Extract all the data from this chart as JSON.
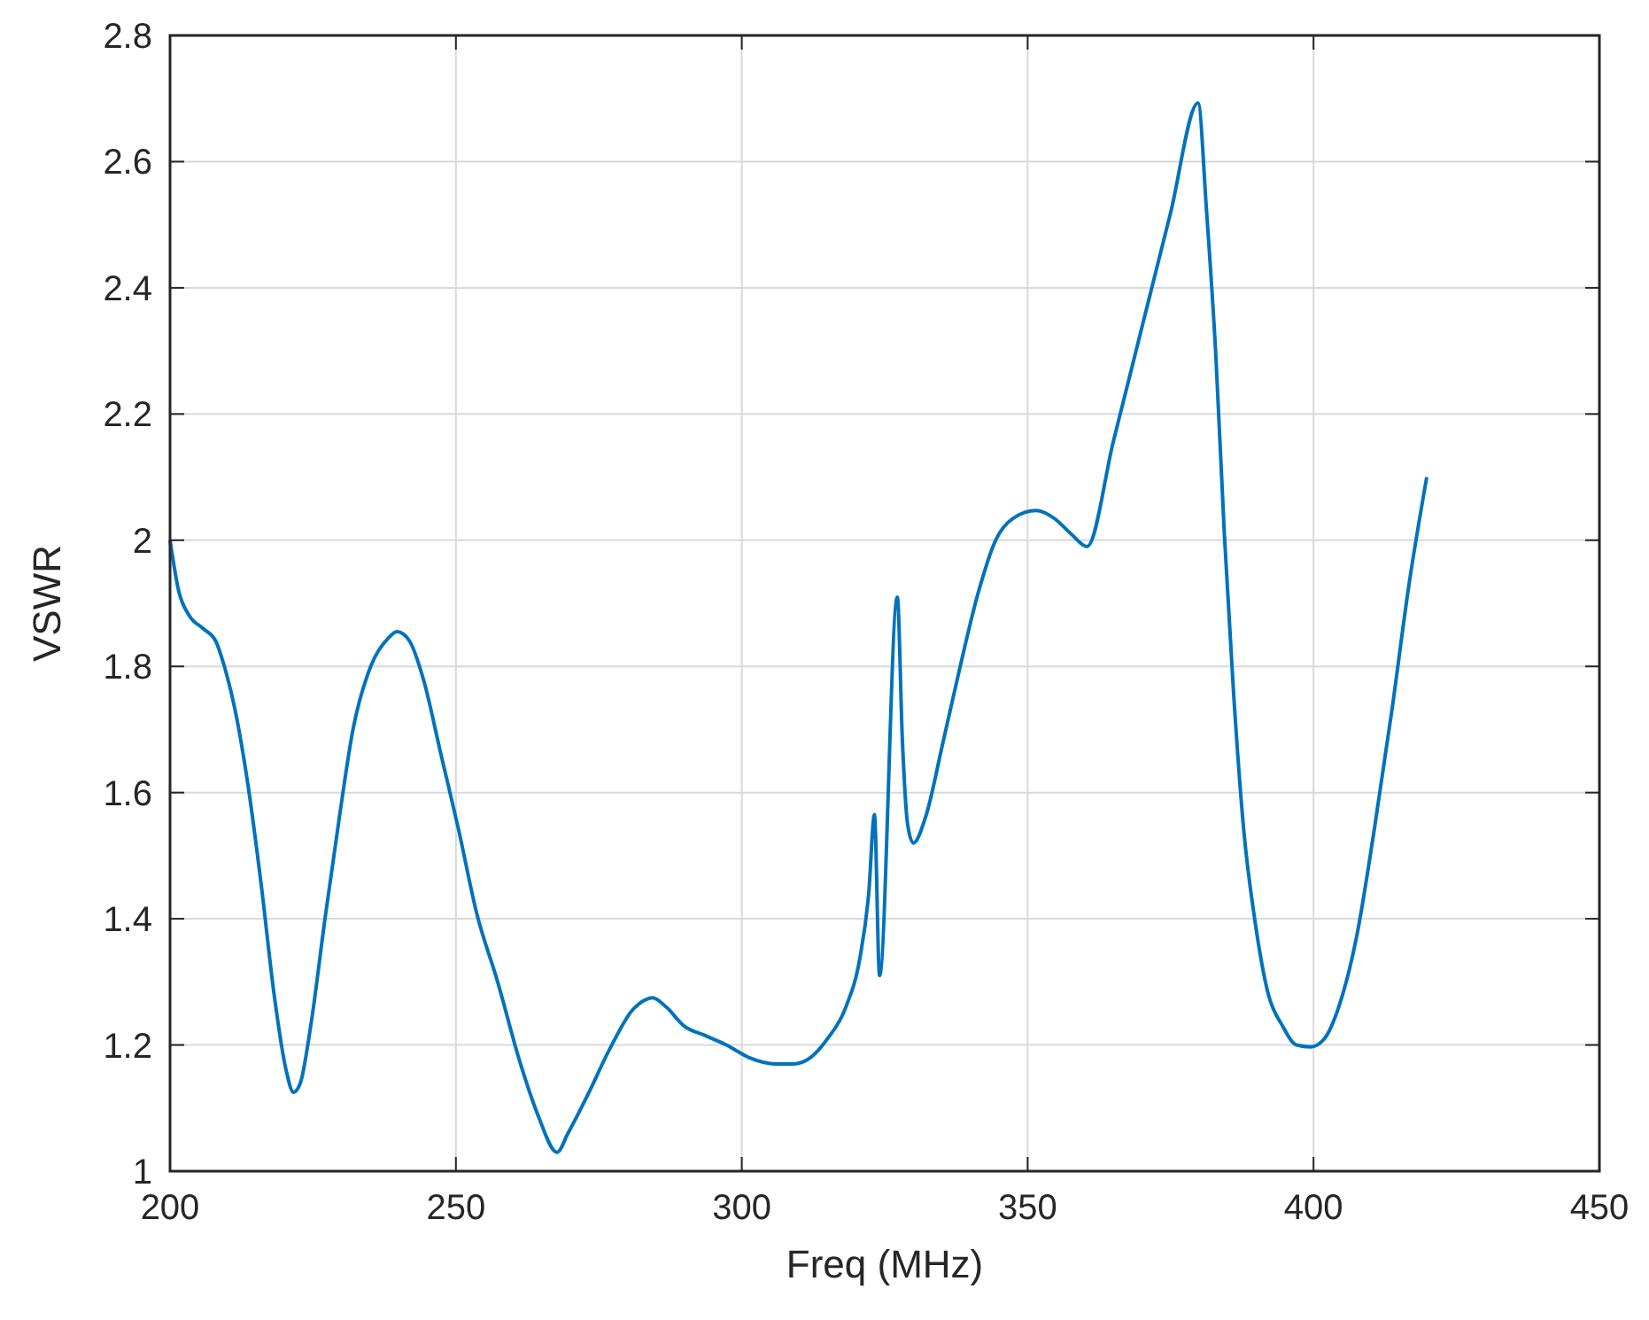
{
  "chart_data": {
    "type": "line",
    "xlabel": "Freq (MHz)",
    "ylabel": "VSWR",
    "xlim": [
      200,
      450
    ],
    "xticks": [
      200,
      250,
      300,
      350,
      400,
      450
    ],
    "ylim": [
      1,
      2.8
    ],
    "yticks": [
      1,
      1.2,
      1.4,
      1.6,
      1.8,
      2,
      2.2,
      2.4,
      2.6,
      2.8
    ],
    "grid": true,
    "series": [
      {
        "color": "#0072bd",
        "x": [
          200,
          201.5,
          203.4,
          205.8,
          208,
          209.5,
          211.4,
          213.5,
          216,
          218.2,
          220.3,
          221.6,
          222.8,
          224.6,
          227.1,
          229.6,
          232,
          235.1,
          238.2,
          239.7,
          241.9,
          244.3,
          247.4,
          250.5,
          253.6,
          257.3,
          261.3,
          264.3,
          267.7,
          269.6,
          273,
          276.7,
          279.7,
          280.4,
          282,
          284.4,
          286.8,
          289.9,
          293.6,
          297.3,
          301.3,
          305.9,
          309,
          312,
          315,
          318.2,
          320.7,
          322.2,
          323.2,
          324.1,
          327.2,
          328.1,
          329,
          330,
          332.1,
          335.2,
          338.2,
          341.3,
          344.4,
          347.5,
          351.5,
          354.6,
          357.6,
          360.4,
          365,
          370,
          375,
          379.8,
          381.3,
          382.9,
          384.4,
          386,
          387.8,
          389.7,
          392.1,
          394.6,
          397,
          399.5,
          401.9,
          404.4,
          407.5,
          410.6,
          413.7,
          416.7,
          419.8
        ],
        "values": [
          2.0,
          1.92,
          1.88,
          1.86,
          1.84,
          1.8,
          1.73,
          1.62,
          1.45,
          1.28,
          1.16,
          1.125,
          1.14,
          1.23,
          1.4,
          1.56,
          1.7,
          1.8,
          1.845,
          1.855,
          1.84,
          1.78,
          1.66,
          1.54,
          1.41,
          1.3,
          1.17,
          1.09,
          1.03,
          1.06,
          1.12,
          1.19,
          1.24,
          1.25,
          1.265,
          1.275,
          1.26,
          1.23,
          1.215,
          1.2,
          1.18,
          1.17,
          1.17,
          1.18,
          1.21,
          1.26,
          1.34,
          1.44,
          1.565,
          1.31,
          1.91,
          1.68,
          1.55,
          1.52,
          1.56,
          1.68,
          1.8,
          1.915,
          2.0,
          2.035,
          2.047,
          2.035,
          2.01,
          1.99,
          2.157,
          2.338,
          2.519,
          2.693,
          2.52,
          2.295,
          2.01,
          1.76,
          1.54,
          1.4,
          1.28,
          1.23,
          1.2,
          1.197,
          1.21,
          1.26,
          1.37,
          1.54,
          1.73,
          1.93,
          2.1
        ]
      }
    ]
  }
}
